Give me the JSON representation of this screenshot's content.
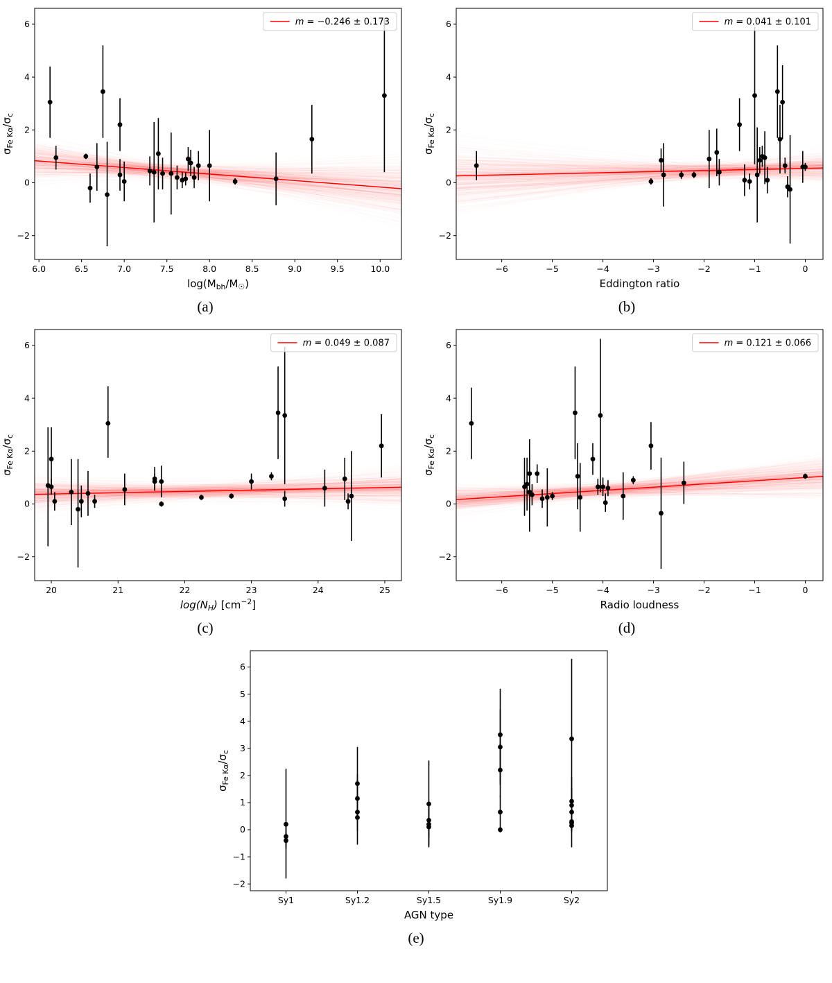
{
  "figure": {
    "captions": [
      "(a)",
      "(b)",
      "(c)",
      "(d)",
      "(e)"
    ]
  },
  "chart_data": [
    {
      "id": "a",
      "type": "scatter",
      "xlabel": [
        {
          "t": "log(M"
        },
        {
          "t": "bh",
          "style": "sub"
        },
        {
          "t": "/M"
        },
        {
          "t": "☉",
          "style": "sub"
        },
        {
          "t": ")"
        }
      ],
      "ylabel": [
        {
          "t": "σ"
        },
        {
          "t": "Fe Kα",
          "style": "sub"
        },
        {
          "t": "/σ"
        },
        {
          "t": "c",
          "style": "sub"
        }
      ],
      "xlim": [
        5.95,
        10.25
      ],
      "ylim": [
        -2.9,
        6.6
      ],
      "xticks": {
        "values": [
          6.0,
          6.5,
          7.0,
          7.5,
          8.0,
          8.5,
          9.0,
          9.5,
          10.0
        ],
        "labels": [
          "6.0",
          "6.5",
          "7.0",
          "7.5",
          "8.0",
          "8.5",
          "9.0",
          "9.5",
          "10.0"
        ]
      },
      "yticks": {
        "values": [
          -2,
          0,
          2,
          4,
          6
        ],
        "labels": [
          "−2",
          "0",
          "2",
          "4",
          "6"
        ]
      },
      "colors": {
        "fit": "#ff0000",
        "points": "#000000"
      },
      "points": [
        [
          6.13,
          3.05,
          1.35,
          1.35
        ],
        [
          6.2,
          0.95,
          0.45,
          0.45
        ],
        [
          6.55,
          1.0,
          0.1,
          0.1
        ],
        [
          6.6,
          -0.2,
          0.55,
          0.55
        ],
        [
          6.68,
          0.6,
          0.9,
          0.9
        ],
        [
          6.75,
          3.45,
          1.75,
          1.75
        ],
        [
          6.8,
          -0.45,
          1.95,
          2.0
        ],
        [
          6.95,
          2.2,
          1.0,
          1.0
        ],
        [
          6.95,
          0.3,
          0.6,
          0.6
        ],
        [
          7.0,
          0.05,
          0.75,
          0.75
        ],
        [
          7.3,
          0.45,
          0.55,
          0.55
        ],
        [
          7.35,
          0.4,
          1.9,
          1.9
        ],
        [
          7.4,
          1.1,
          1.35,
          1.35
        ],
        [
          7.45,
          0.35,
          0.6,
          0.6
        ],
        [
          7.55,
          0.35,
          1.55,
          1.55
        ],
        [
          7.62,
          0.2,
          0.45,
          0.45
        ],
        [
          7.68,
          0.1,
          0.3,
          0.3
        ],
        [
          7.72,
          0.15,
          0.25,
          0.25
        ],
        [
          7.75,
          0.9,
          0.45,
          0.45
        ],
        [
          7.78,
          0.75,
          0.5,
          0.5
        ],
        [
          7.82,
          0.2,
          0.4,
          0.4
        ],
        [
          7.87,
          0.65,
          0.55,
          0.55
        ],
        [
          8.0,
          0.65,
          1.35,
          1.35
        ],
        [
          8.3,
          0.05,
          0.12,
          0.12
        ],
        [
          8.78,
          0.15,
          1.0,
          1.0
        ],
        [
          9.2,
          1.65,
          1.3,
          1.3
        ],
        [
          10.05,
          3.3,
          2.9,
          2.9
        ]
      ],
      "fit": {
        "slope": -0.246,
        "slope_sd": 0.173,
        "pivot": [
          7.6,
          0.43
        ]
      },
      "legend": {
        "var": "m",
        "rest": " = −0.246 ± 0.173"
      }
    },
    {
      "id": "b",
      "type": "scatter",
      "xlabel": [
        {
          "t": "Eddington ratio"
        }
      ],
      "ylabel": [
        {
          "t": "σ"
        },
        {
          "t": "Fe Kα",
          "style": "sub"
        },
        {
          "t": "/σ"
        },
        {
          "t": "c",
          "style": "sub"
        }
      ],
      "xlim": [
        -6.9,
        0.35
      ],
      "ylim": [
        -2.9,
        6.6
      ],
      "xticks": {
        "values": [
          -6,
          -5,
          -4,
          -3,
          -2,
          -1,
          0
        ],
        "labels": [
          "−6",
          "−5",
          "−4",
          "−3",
          "−2",
          "−1",
          "0"
        ]
      },
      "yticks": {
        "values": [
          -2,
          0,
          2,
          4,
          6
        ],
        "labels": [
          "−2",
          "0",
          "2",
          "4",
          "6"
        ]
      },
      "colors": {
        "fit": "#ff0000",
        "points": "#000000"
      },
      "points": [
        [
          -6.5,
          0.65,
          0.55,
          0.55
        ],
        [
          -3.05,
          0.05,
          0.12,
          0.12
        ],
        [
          -2.85,
          0.85,
          0.45,
          0.45
        ],
        [
          -2.8,
          0.3,
          1.2,
          1.2
        ],
        [
          -2.45,
          0.3,
          0.15,
          0.15
        ],
        [
          -2.2,
          0.3,
          0.12,
          0.12
        ],
        [
          -1.9,
          0.9,
          1.1,
          1.1
        ],
        [
          -1.75,
          1.15,
          0.9,
          0.9
        ],
        [
          -1.7,
          0.4,
          0.5,
          0.5
        ],
        [
          -1.3,
          2.2,
          1.0,
          1.0
        ],
        [
          -1.2,
          0.1,
          0.6,
          0.6
        ],
        [
          -1.1,
          0.05,
          0.3,
          0.3
        ],
        [
          -1.0,
          3.3,
          2.6,
          2.6
        ],
        [
          -0.95,
          0.3,
          1.8,
          1.8
        ],
        [
          -0.9,
          0.85,
          0.5,
          0.5
        ],
        [
          -0.85,
          1.0,
          0.4,
          0.4
        ],
        [
          -0.8,
          0.95,
          1.0,
          1.0
        ],
        [
          -0.75,
          0.1,
          0.5,
          0.5
        ],
        [
          -0.55,
          3.45,
          1.75,
          1.75
        ],
        [
          -0.5,
          1.65,
          1.3,
          1.3
        ],
        [
          -0.45,
          3.05,
          1.4,
          1.4
        ],
        [
          -0.4,
          0.65,
          0.3,
          0.3
        ],
        [
          -0.35,
          -0.15,
          0.4,
          0.4
        ],
        [
          -0.3,
          -0.25,
          2.05,
          2.05
        ],
        [
          -0.05,
          0.6,
          0.6,
          0.6
        ],
        [
          0.0,
          0.6,
          0.15,
          0.15
        ]
      ],
      "fit": {
        "slope": 0.041,
        "slope_sd": 0.101,
        "pivot": [
          -1.6,
          0.48
        ]
      },
      "legend": {
        "var": "m",
        "rest": " = 0.041 ± 0.101"
      }
    },
    {
      "id": "c",
      "type": "scatter",
      "xlabel": [
        {
          "t": "log(N",
          "style": "italic"
        },
        {
          "t": "H",
          "style": "subitalic"
        },
        {
          "t": ")",
          "style": "italic"
        },
        {
          "t": " [cm"
        },
        {
          "t": "−2",
          "style": "sup"
        },
        {
          "t": "]"
        }
      ],
      "ylabel": [
        {
          "t": "σ"
        },
        {
          "t": "Fe Kα",
          "style": "sub"
        },
        {
          "t": "/σ"
        },
        {
          "t": "c",
          "style": "sub"
        }
      ],
      "xlim": [
        19.75,
        25.25
      ],
      "ylim": [
        -2.9,
        6.6
      ],
      "xticks": {
        "values": [
          20,
          21,
          22,
          23,
          24,
          25
        ],
        "labels": [
          "20",
          "21",
          "22",
          "23",
          "24",
          "25"
        ]
      },
      "yticks": {
        "values": [
          -2,
          0,
          2,
          4,
          6
        ],
        "labels": [
          "−2",
          "0",
          "2",
          "4",
          "6"
        ]
      },
      "colors": {
        "fit": "#ff0000",
        "points": "#000000"
      },
      "points": [
        [
          19.95,
          0.7,
          2.3,
          2.2
        ],
        [
          20.0,
          1.7,
          1.2,
          1.2
        ],
        [
          20.0,
          0.65,
          0.3,
          0.3
        ],
        [
          20.05,
          0.1,
          0.35,
          0.35
        ],
        [
          20.3,
          0.45,
          1.25,
          1.25
        ],
        [
          20.4,
          -0.2,
          2.2,
          1.9
        ],
        [
          20.45,
          0.1,
          0.6,
          0.6
        ],
        [
          20.55,
          0.4,
          0.85,
          0.85
        ],
        [
          20.65,
          0.1,
          0.25,
          0.25
        ],
        [
          20.85,
          3.05,
          1.3,
          1.4
        ],
        [
          21.1,
          0.55,
          0.6,
          0.6
        ],
        [
          21.55,
          0.95,
          0.45,
          0.45
        ],
        [
          21.55,
          0.85,
          0.3,
          0.3
        ],
        [
          21.65,
          0.85,
          0.6,
          0.6
        ],
        [
          21.65,
          0.0,
          0.1,
          0.1
        ],
        [
          22.25,
          0.25,
          0.1,
          0.1
        ],
        [
          22.7,
          0.3,
          0.1,
          0.1
        ],
        [
          23.0,
          0.85,
          0.3,
          0.3
        ],
        [
          23.3,
          1.05,
          0.15,
          0.15
        ],
        [
          23.4,
          3.45,
          1.75,
          1.75
        ],
        [
          23.5,
          3.35,
          2.6,
          2.6
        ],
        [
          23.5,
          0.2,
          0.3,
          0.3
        ],
        [
          24.1,
          0.6,
          0.7,
          0.7
        ],
        [
          24.4,
          0.95,
          0.8,
          0.8
        ],
        [
          24.45,
          0.1,
          0.3,
          0.3
        ],
        [
          24.5,
          0.3,
          1.7,
          1.7
        ],
        [
          24.95,
          2.2,
          1.2,
          1.2
        ]
      ],
      "fit": {
        "slope": 0.049,
        "slope_sd": 0.087,
        "pivot": [
          22.3,
          0.49
        ]
      },
      "legend": {
        "var": "m",
        "rest": " = 0.049 ± 0.087"
      }
    },
    {
      "id": "d",
      "type": "scatter",
      "xlabel": [
        {
          "t": "Radio loudness"
        }
      ],
      "ylabel": [
        {
          "t": "σ"
        },
        {
          "t": "Fe Kα",
          "style": "sub"
        },
        {
          "t": "/σ"
        },
        {
          "t": "c",
          "style": "sub"
        }
      ],
      "xlim": [
        -6.9,
        0.35
      ],
      "ylim": [
        -2.9,
        6.6
      ],
      "xticks": {
        "values": [
          -6,
          -5,
          -4,
          -3,
          -2,
          -1,
          0
        ],
        "labels": [
          "−6",
          "−5",
          "−4",
          "−3",
          "−2",
          "−1",
          "0"
        ]
      },
      "yticks": {
        "values": [
          -2,
          0,
          2,
          4,
          6
        ],
        "labels": [
          "−2",
          "0",
          "2",
          "4",
          "6"
        ]
      },
      "colors": {
        "fit": "#ff0000",
        "points": "#000000"
      },
      "points": [
        [
          -6.6,
          3.05,
          1.35,
          1.35
        ],
        [
          -5.55,
          0.65,
          1.1,
          1.1
        ],
        [
          -5.5,
          0.75,
          1.0,
          1.0
        ],
        [
          -5.45,
          0.45,
          1.5,
          1.5
        ],
        [
          -5.45,
          1.15,
          1.3,
          1.3
        ],
        [
          -5.4,
          0.35,
          0.4,
          0.4
        ],
        [
          -5.3,
          1.15,
          0.35,
          0.35
        ],
        [
          -5.2,
          0.2,
          0.35,
          0.35
        ],
        [
          -5.1,
          0.25,
          1.1,
          1.1
        ],
        [
          -5.0,
          0.3,
          0.15,
          0.15
        ],
        [
          -4.55,
          3.45,
          1.75,
          1.75
        ],
        [
          -4.5,
          1.05,
          1.25,
          1.25
        ],
        [
          -4.45,
          0.25,
          1.3,
          1.3
        ],
        [
          -4.2,
          1.7,
          0.6,
          0.6
        ],
        [
          -4.1,
          0.65,
          0.3,
          0.3
        ],
        [
          -4.05,
          3.35,
          2.9,
          2.9
        ],
        [
          -4.0,
          0.65,
          0.35,
          0.35
        ],
        [
          -3.95,
          0.05,
          0.35,
          0.35
        ],
        [
          -3.9,
          0.6,
          0.3,
          0.3
        ],
        [
          -3.6,
          0.3,
          0.9,
          0.9
        ],
        [
          -3.4,
          0.9,
          0.15,
          0.15
        ],
        [
          -3.05,
          2.2,
          0.9,
          0.9
        ],
        [
          -2.85,
          -0.35,
          2.1,
          2.1
        ],
        [
          -2.4,
          0.8,
          0.8,
          0.8
        ],
        [
          0.0,
          1.05,
          0.1,
          0.1
        ]
      ],
      "fit": {
        "slope": 0.121,
        "slope_sd": 0.066,
        "pivot": [
          -4.3,
          0.48
        ]
      },
      "legend": {
        "var": "m",
        "rest": " = 0.121 ± 0.066"
      }
    },
    {
      "id": "e",
      "type": "scatter",
      "categorical": true,
      "categories": [
        "Sy1",
        "Sy1.2",
        "Sy1.5",
        "Sy1.9",
        "Sy2"
      ],
      "xlabel": [
        {
          "t": "AGN type"
        }
      ],
      "ylabel": [
        {
          "t": "σ"
        },
        {
          "t": "Fe Kα",
          "style": "sub"
        },
        {
          "t": "/σ"
        },
        {
          "t": "c",
          "style": "sub"
        }
      ],
      "xlim": [
        -0.5,
        4.5
      ],
      "ylim": [
        -2.25,
        6.6
      ],
      "xticks": {
        "values": [
          0,
          1,
          2,
          3,
          4
        ],
        "labels": [
          "Sy1",
          "Sy1.2",
          "Sy1.5",
          "Sy1.9",
          "Sy2"
        ]
      },
      "yticks": {
        "values": [
          -2,
          -1,
          0,
          1,
          2,
          3,
          4,
          5,
          6
        ],
        "labels": [
          "−2",
          "−1",
          "0",
          "1",
          "2",
          "3",
          "4",
          "5",
          "6"
        ]
      },
      "colors": {
        "fit": "#ff0000",
        "points": "#000000"
      },
      "points": [
        [
          0,
          0.2,
          2.0,
          2.05
        ],
        [
          0,
          -0.25,
          0.4,
          0.4
        ],
        [
          0,
          -0.4,
          0.3,
          0.3
        ],
        [
          1,
          1.7,
          1.35,
          1.35
        ],
        [
          1,
          1.15,
          0.9,
          0.9
        ],
        [
          1,
          0.65,
          1.2,
          1.2
        ],
        [
          1,
          0.45,
          0.5,
          0.5
        ],
        [
          2,
          0.95,
          1.6,
          1.6
        ],
        [
          2,
          0.35,
          0.6,
          0.6
        ],
        [
          2,
          0.2,
          0.8,
          0.8
        ],
        [
          2,
          0.1,
          0.3,
          0.3
        ],
        [
          3,
          3.5,
          1.7,
          1.7
        ],
        [
          3,
          3.05,
          1.4,
          1.4
        ],
        [
          3,
          2.2,
          1.0,
          1.0
        ],
        [
          3,
          0.65,
          0.6,
          0.6
        ],
        [
          3,
          0.0,
          0.1,
          0.1
        ],
        [
          4,
          3.35,
          2.95,
          2.95
        ],
        [
          4,
          1.05,
          0.5,
          0.5
        ],
        [
          4,
          0.9,
          0.6,
          0.6
        ],
        [
          4,
          0.65,
          1.3,
          1.3
        ],
        [
          4,
          0.3,
          0.4,
          0.4
        ],
        [
          4,
          0.25,
          0.3,
          0.3
        ],
        [
          4,
          0.15,
          0.2,
          0.2
        ]
      ],
      "fit": null,
      "legend": null
    }
  ]
}
